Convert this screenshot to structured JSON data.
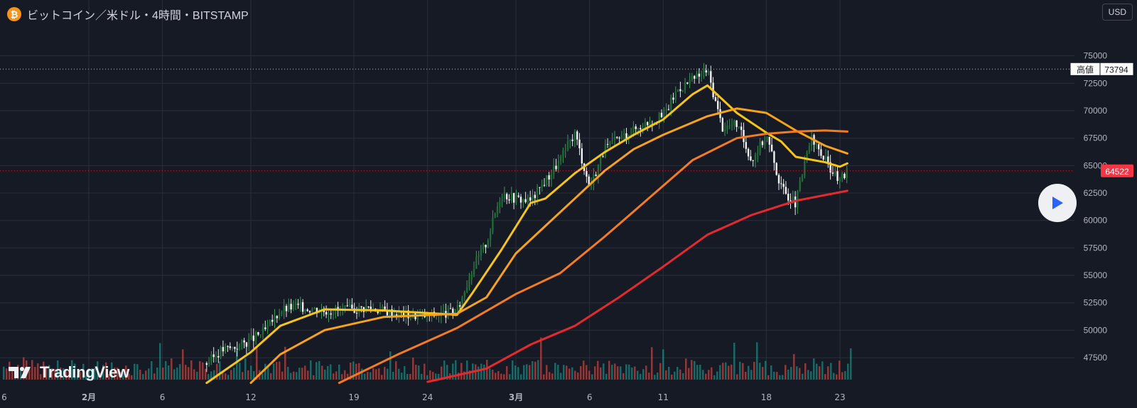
{
  "header": {
    "symbol_icon": "bitcoin-icon",
    "symbol_glyph": "₿",
    "title": "ビットコイン／米ドル・4時間・BITSTAMP",
    "currency_button": "USD"
  },
  "brand": {
    "name": "TradingView"
  },
  "price_axis": {
    "ticks": [
      "75000",
      "72500",
      "70000",
      "67500",
      "65000",
      "62500",
      "60000",
      "57500",
      "55000",
      "52500",
      "50000",
      "47500"
    ],
    "high_label": "高値",
    "high_value": "73794",
    "last_price": "64522"
  },
  "time_axis": {
    "labels": [
      "6",
      "2月",
      "6",
      "12",
      "19",
      "24",
      "3月",
      "6",
      "11",
      "18",
      "23"
    ]
  },
  "colors": {
    "background": "#161a25",
    "grid": "#2a2e39",
    "up": "#26a69a",
    "down": "#ef5350",
    "ma_fast": "#f5c518",
    "ma_mid1": "#f7a21b",
    "ma_mid2": "#f47c20",
    "ma_long": "#e5292f",
    "last_price_bg": "#f23645",
    "play_icon": "#2962ff"
  },
  "chart_data": {
    "type": "line",
    "title": "ビットコイン／米ドル・4時間・BITSTAMP",
    "xlabel": "",
    "ylabel": "",
    "ylim": [
      45500,
      77500
    ],
    "x_tick_labels": [
      "6",
      "2月",
      "6",
      "12",
      "19",
      "24",
      "3月",
      "6",
      "11",
      "18",
      "23"
    ],
    "x_tick_dates": [
      "2024-01-06",
      "2024-02-01",
      "2024-02-06",
      "2024-02-12",
      "2024-02-19",
      "2024-02-24",
      "2024-03-01",
      "2024-03-06",
      "2024-03-11",
      "2024-03-18",
      "2024-03-23"
    ],
    "grid": true,
    "annotations": [
      {
        "label": "高値",
        "value": 73794
      },
      {
        "label": "last",
        "value": 64522
      }
    ],
    "price_path": [
      {
        "x": "2024-02-09",
        "y": 47000
      },
      {
        "x": "2024-02-10",
        "y": 48200
      },
      {
        "x": "2024-02-11",
        "y": 48500
      },
      {
        "x": "2024-02-12",
        "y": 49100
      },
      {
        "x": "2024-02-13",
        "y": 50000
      },
      {
        "x": "2024-02-14",
        "y": 51800
      },
      {
        "x": "2024-02-15",
        "y": 52200
      },
      {
        "x": "2024-02-17",
        "y": 51800
      },
      {
        "x": "2024-02-19",
        "y": 51900
      },
      {
        "x": "2024-02-20",
        "y": 52100
      },
      {
        "x": "2024-02-22",
        "y": 51500
      },
      {
        "x": "2024-02-24",
        "y": 51300
      },
      {
        "x": "2024-02-26",
        "y": 51700
      },
      {
        "x": "2024-02-27",
        "y": 55500
      },
      {
        "x": "2024-02-28",
        "y": 58000
      },
      {
        "x": "2024-02-29",
        "y": 62500
      },
      {
        "x": "2024-03-01",
        "y": 62000
      },
      {
        "x": "2024-03-02",
        "y": 61800
      },
      {
        "x": "2024-03-04",
        "y": 65500
      },
      {
        "x": "2024-03-05",
        "y": 68000
      },
      {
        "x": "2024-03-06",
        "y": 63000
      },
      {
        "x": "2024-03-07",
        "y": 66500
      },
      {
        "x": "2024-03-08",
        "y": 67500
      },
      {
        "x": "2024-03-10",
        "y": 69000
      },
      {
        "x": "2024-03-11",
        "y": 69500
      },
      {
        "x": "2024-03-12",
        "y": 72000
      },
      {
        "x": "2024-03-13",
        "y": 72800
      },
      {
        "x": "2024-03-14",
        "y": 73700
      },
      {
        "x": "2024-03-15",
        "y": 68500
      },
      {
        "x": "2024-03-16",
        "y": 68800
      },
      {
        "x": "2024-03-17",
        "y": 65500
      },
      {
        "x": "2024-03-18",
        "y": 67800
      },
      {
        "x": "2024-03-19",
        "y": 63000
      },
      {
        "x": "2024-03-20",
        "y": 61500
      },
      {
        "x": "2024-03-21",
        "y": 67500
      },
      {
        "x": "2024-03-22",
        "y": 65500
      },
      {
        "x": "2024-03-23",
        "y": 63500
      },
      {
        "x": "2024-03-23T12",
        "y": 64522
      }
    ],
    "series": [
      {
        "values": [
          {
            "x": "2024-02-09",
            "y": 45200
          },
          {
            "x": "2024-02-12",
            "y": 48000
          },
          {
            "x": "2024-02-14",
            "y": 50400
          },
          {
            "x": "2024-02-17",
            "y": 51900
          },
          {
            "x": "2024-02-21",
            "y": 51800
          },
          {
            "x": "2024-02-26",
            "y": 51400
          },
          {
            "x": "2024-02-27",
            "y": 53300
          },
          {
            "x": "2024-02-29",
            "y": 57300
          },
          {
            "x": "2024-03-02",
            "y": 61600
          },
          {
            "x": "2024-03-03",
            "y": 62000
          },
          {
            "x": "2024-03-05",
            "y": 64300
          },
          {
            "x": "2024-03-07",
            "y": 66200
          },
          {
            "x": "2024-03-09",
            "y": 67800
          },
          {
            "x": "2024-03-11",
            "y": 69200
          },
          {
            "x": "2024-03-13",
            "y": 71500
          },
          {
            "x": "2024-03-14",
            "y": 72300
          },
          {
            "x": "2024-03-16",
            "y": 69800
          },
          {
            "x": "2024-03-18",
            "y": 68000
          },
          {
            "x": "2024-03-19",
            "y": 67200
          },
          {
            "x": "2024-03-20",
            "y": 65800
          },
          {
            "x": "2024-03-22",
            "y": 65300
          },
          {
            "x": "2024-03-23",
            "y": 64900
          },
          {
            "x": "2024-03-23T12",
            "y": 65200
          }
        ]
      },
      {
        "values": [
          {
            "x": "2024-02-12",
            "y": 45200
          },
          {
            "x": "2024-02-14",
            "y": 47800
          },
          {
            "x": "2024-02-17",
            "y": 50000
          },
          {
            "x": "2024-02-21",
            "y": 51200
          },
          {
            "x": "2024-02-26",
            "y": 51500
          },
          {
            "x": "2024-02-28",
            "y": 53000
          },
          {
            "x": "2024-03-01",
            "y": 57000
          },
          {
            "x": "2024-03-03",
            "y": 59500
          },
          {
            "x": "2024-03-05",
            "y": 62000
          },
          {
            "x": "2024-03-07",
            "y": 64500
          },
          {
            "x": "2024-03-09",
            "y": 66500
          },
          {
            "x": "2024-03-11",
            "y": 67800
          },
          {
            "x": "2024-03-14",
            "y": 69500
          },
          {
            "x": "2024-03-16",
            "y": 70200
          },
          {
            "x": "2024-03-18",
            "y": 69800
          },
          {
            "x": "2024-03-20",
            "y": 68200
          },
          {
            "x": "2024-03-22",
            "y": 66800
          },
          {
            "x": "2024-03-23T12",
            "y": 66100
          }
        ]
      },
      {
        "values": [
          {
            "x": "2024-02-18",
            "y": 45200
          },
          {
            "x": "2024-02-22",
            "y": 47800
          },
          {
            "x": "2024-02-26",
            "y": 50200
          },
          {
            "x": "2024-03-01",
            "y": 53300
          },
          {
            "x": "2024-03-04",
            "y": 55200
          },
          {
            "x": "2024-03-07",
            "y": 58500
          },
          {
            "x": "2024-03-10",
            "y": 62000
          },
          {
            "x": "2024-03-13",
            "y": 65500
          },
          {
            "x": "2024-03-16",
            "y": 67500
          },
          {
            "x": "2024-03-18",
            "y": 67900
          },
          {
            "x": "2024-03-20",
            "y": 68100
          },
          {
            "x": "2024-03-22",
            "y": 68200
          },
          {
            "x": "2024-03-23T12",
            "y": 68100
          }
        ]
      },
      {
        "values": [
          {
            "x": "2024-02-24",
            "y": 45300
          },
          {
            "x": "2024-02-28",
            "y": 46500
          },
          {
            "x": "2024-03-02",
            "y": 48700
          },
          {
            "x": "2024-03-05",
            "y": 50400
          },
          {
            "x": "2024-03-08",
            "y": 53000
          },
          {
            "x": "2024-03-11",
            "y": 55800
          },
          {
            "x": "2024-03-14",
            "y": 58700
          },
          {
            "x": "2024-03-17",
            "y": 60500
          },
          {
            "x": "2024-03-20",
            "y": 61800
          },
          {
            "x": "2024-03-23T12",
            "y": 62700
          }
        ]
      }
    ]
  }
}
